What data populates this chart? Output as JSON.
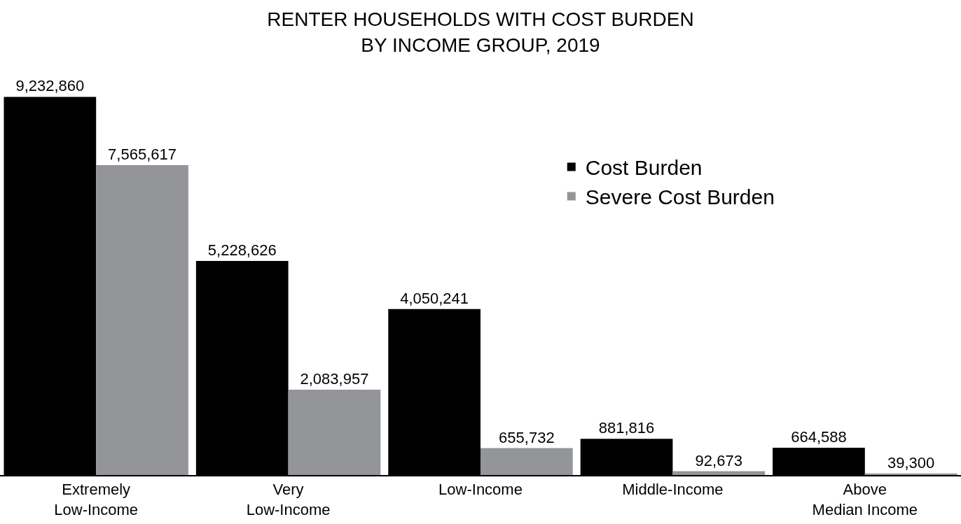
{
  "chart_data": {
    "type": "bar",
    "title": "RENTER HOUSEHOLDS WITH COST BURDEN\nBY INCOME GROUP, 2019",
    "categories": [
      "Extremely Low-Income",
      "Very Low-Income",
      "Low-Income",
      "Middle-Income",
      "Above Median Income"
    ],
    "series": [
      {
        "name": "Cost Burden",
        "color": "#000000",
        "values": [
          9232860,
          5228626,
          4050241,
          881816,
          664588
        ],
        "value_labels": [
          "9,232,860",
          "5,228,626",
          "4,050,241",
          "881,816",
          "664,588"
        ]
      },
      {
        "name": "Severe Cost Burden",
        "color": "#939598",
        "values": [
          7565617,
          2083957,
          655732,
          92673,
          39300
        ],
        "value_labels": [
          "7,565,617",
          "2,083,957",
          "655,732",
          "92,673",
          "39,300"
        ]
      }
    ],
    "legend": "top right"
  }
}
